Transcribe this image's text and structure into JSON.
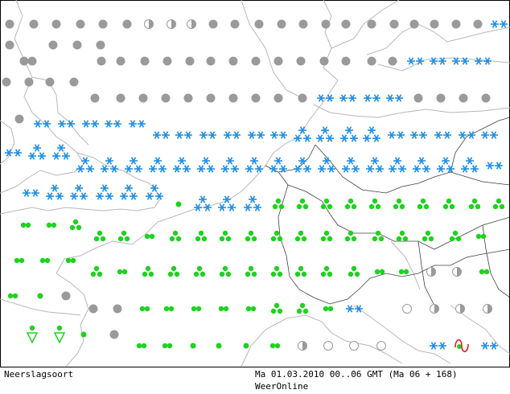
{
  "footer": {
    "map_type": "Neerslagsoort",
    "valid_time": "Ma 01.03.2010 00..06 GMT (Ma 06 + 168)",
    "source": "WeerOnline"
  },
  "colors": {
    "snow": "#1e8fe6",
    "rain": "#1ed21e",
    "none": "#9a9a9a",
    "mixed": "#9a9a9a",
    "drizzle_symbol": "#1ed21e",
    "freezing": "#e01e1e",
    "coast": "#b8b8b8",
    "border": "#000000"
  },
  "legend_symbols": {
    "snow": "snow-asterisk-pair-icon",
    "rain_light": "rain-dots-icon",
    "rain_heavy": "rain-triple-dot-icon",
    "none": "grey-dot-icon",
    "mixed": "half-filled-circle-icon",
    "showers": "shower-triangle-icon",
    "freezing": "freezing-rain-tilde-icon"
  }
}
